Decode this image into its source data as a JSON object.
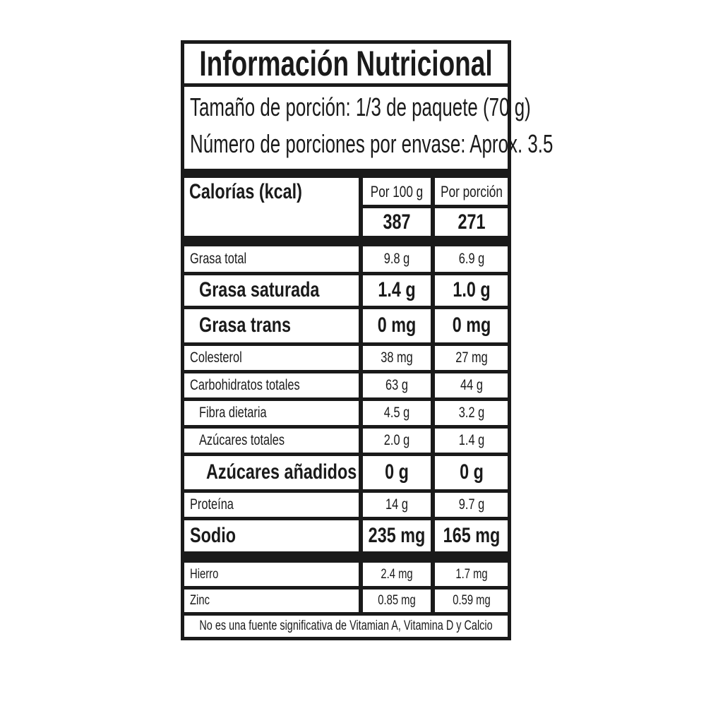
{
  "title": "Información Nutricional",
  "serving_size": "Tamaño de porción: 1/3 de paquete (70 g)",
  "servings_per_container": "Número de porciones por envase: Aprox. 3.5",
  "calories": {
    "label": "Calorías (kcal)",
    "col1_header": "Por 100 g",
    "col2_header": "Por porción",
    "per_100g": "387",
    "per_serving": "271"
  },
  "nutrients": [
    {
      "name": "Grasa total",
      "per_100g": "9.8 g",
      "per_serving": "6.9 g",
      "bold": false,
      "indent": 0
    },
    {
      "name": "Grasa saturada",
      "per_100g": "1.4 g",
      "per_serving": "1.0 g",
      "bold": true,
      "indent": 1
    },
    {
      "name": "Grasa trans",
      "per_100g": "0 mg",
      "per_serving": "0 mg",
      "bold": true,
      "indent": 1
    },
    {
      "name": "Colesterol",
      "per_100g": "38 mg",
      "per_serving": "27 mg",
      "bold": false,
      "indent": 0
    },
    {
      "name": "Carbohidratos totales",
      "per_100g": "63 g",
      "per_serving": "44 g",
      "bold": false,
      "indent": 0
    },
    {
      "name": "Fibra dietaria",
      "per_100g": "4.5 g",
      "per_serving": "3.2 g",
      "bold": false,
      "indent": 1
    },
    {
      "name": "Azúcares totales",
      "per_100g": "2.0 g",
      "per_serving": "1.4 g",
      "bold": false,
      "indent": 1
    },
    {
      "name": "Azúcares añadidos",
      "per_100g": "0 g",
      "per_serving": "0 g",
      "bold": true,
      "indent": 2
    },
    {
      "name": "Proteína",
      "per_100g": "14 g",
      "per_serving": "9.7 g",
      "bold": false,
      "indent": 0
    },
    {
      "name": "Sodio",
      "per_100g": "235 mg",
      "per_serving": "165 mg",
      "bold": true,
      "indent": 0
    }
  ],
  "minerals": [
    {
      "name": "Hierro",
      "per_100g": "2.4 mg",
      "per_serving": "1.7 mg"
    },
    {
      "name": "Zinc",
      "per_100g": "0.85 mg",
      "per_serving": "0.59 mg"
    }
  ],
  "footnote": "No es una fuente significativa de Vitamian A, Vitamina D y Calcio"
}
